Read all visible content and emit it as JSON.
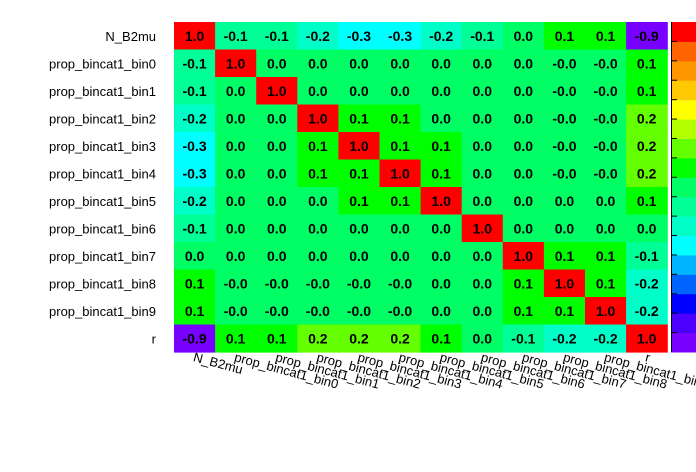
{
  "chart_data": {
    "type": "heatmap",
    "title": "",
    "xlabel": "",
    "ylabel": "",
    "labels": [
      "N_B2mu",
      "prop_bincat1_bin0",
      "prop_bincat1_bin1",
      "prop_bincat1_bin2",
      "prop_bincat1_bin3",
      "prop_bincat1_bin4",
      "prop_bincat1_bin5",
      "prop_bincat1_bin6",
      "prop_bincat1_bin7",
      "prop_bincat1_bin8",
      "prop_bincat1_bin9",
      "r"
    ],
    "values": [
      [
        "1.0",
        "-0.1",
        "-0.1",
        "-0.2",
        "-0.3",
        "-0.3",
        "-0.2",
        "-0.1",
        "0.0",
        "0.1",
        "0.1",
        "-0.9"
      ],
      [
        "-0.1",
        "1.0",
        "0.0",
        "0.0",
        "0.0",
        "0.0",
        "0.0",
        "0.0",
        "0.0",
        "-0.0",
        "-0.0",
        "0.1"
      ],
      [
        "-0.1",
        "0.0",
        "1.0",
        "0.0",
        "0.0",
        "0.0",
        "0.0",
        "0.0",
        "0.0",
        "-0.0",
        "-0.0",
        "0.1"
      ],
      [
        "-0.2",
        "0.0",
        "0.0",
        "1.0",
        "0.1",
        "0.1",
        "0.0",
        "0.0",
        "0.0",
        "-0.0",
        "-0.0",
        "0.2"
      ],
      [
        "-0.3",
        "0.0",
        "0.0",
        "0.1",
        "1.0",
        "0.1",
        "0.1",
        "0.0",
        "0.0",
        "-0.0",
        "-0.0",
        "0.2"
      ],
      [
        "-0.3",
        "0.0",
        "0.0",
        "0.1",
        "0.1",
        "1.0",
        "0.1",
        "0.0",
        "0.0",
        "-0.0",
        "-0.0",
        "0.2"
      ],
      [
        "-0.2",
        "0.0",
        "0.0",
        "0.0",
        "0.1",
        "0.1",
        "1.0",
        "0.0",
        "0.0",
        "0.0",
        "0.0",
        "0.1"
      ],
      [
        "-0.1",
        "0.0",
        "0.0",
        "0.0",
        "0.0",
        "0.0",
        "0.0",
        "1.0",
        "0.0",
        "0.0",
        "0.0",
        "0.0"
      ],
      [
        "0.0",
        "0.0",
        "0.0",
        "0.0",
        "0.0",
        "0.0",
        "0.0",
        "0.0",
        "1.0",
        "0.1",
        "0.1",
        "-0.1"
      ],
      [
        "0.1",
        "-0.0",
        "-0.0",
        "-0.0",
        "-0.0",
        "-0.0",
        "0.0",
        "0.0",
        "0.1",
        "1.0",
        "0.1",
        "-0.2"
      ],
      [
        "0.1",
        "-0.0",
        "-0.0",
        "-0.0",
        "-0.0",
        "-0.0",
        "0.0",
        "0.0",
        "0.1",
        "0.1",
        "1.0",
        "-0.2"
      ],
      [
        "-0.9",
        "0.1",
        "0.1",
        "0.2",
        "0.2",
        "0.2",
        "0.1",
        "0.0",
        "-0.1",
        "-0.2",
        "-0.2",
        "1.0"
      ]
    ],
    "zlim": [
      -1,
      1
    ],
    "colorscale": [
      "#7800ff",
      "#4b00ff",
      "#0000ff",
      "#0064ff",
      "#00b4ff",
      "#00ffff",
      "#00ffc8",
      "#00ff96",
      "#00ff64",
      "#00ff00",
      "#64ff00",
      "#b4ff00",
      "#ffff00",
      "#ffc800",
      "#ff9600",
      "#ff6400",
      "#ff0000"
    ],
    "legend": "colorbar-right",
    "grid": false
  }
}
